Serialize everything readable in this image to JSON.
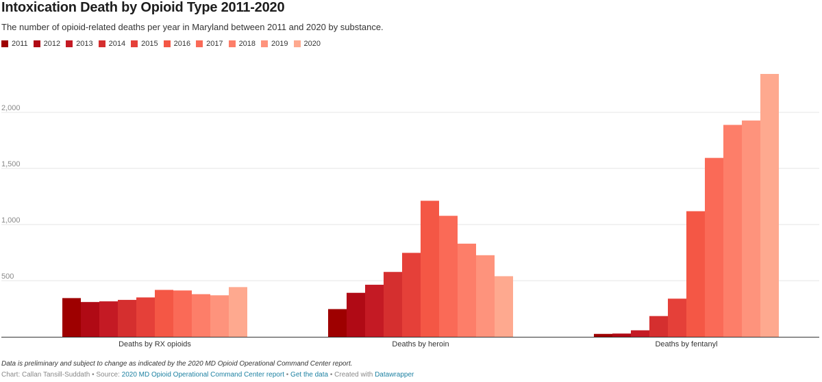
{
  "chart_data": {
    "type": "bar",
    "title": "Intoxication Death by Opioid Type 2011-2020",
    "subtitle": "The number of opioid-related deaths per year in Maryland between 2011 and 2020 by substance.",
    "categories": [
      "Deaths by RX opioids",
      "Deaths by heroin",
      "Deaths by fentanyl"
    ],
    "series": [
      {
        "name": "2011",
        "color": "#9e0000",
        "values": [
          345,
          247,
          26
        ]
      },
      {
        "name": "2012",
        "color": "#b00a15",
        "values": [
          310,
          392,
          29
        ]
      },
      {
        "name": "2013",
        "color": "#c41a24",
        "values": [
          316,
          464,
          58
        ]
      },
      {
        "name": "2014",
        "color": "#d52f2f",
        "values": [
          329,
          578,
          185
        ]
      },
      {
        "name": "2015",
        "color": "#e54039",
        "values": [
          351,
          748,
          340
        ]
      },
      {
        "name": "2016",
        "color": "#f45745",
        "values": [
          418,
          1212,
          1119
        ]
      },
      {
        "name": "2017",
        "color": "#fa6a57",
        "values": [
          413,
          1078,
          1594
        ]
      },
      {
        "name": "2018",
        "color": "#fd7e69",
        "values": [
          380,
          830,
          1888
        ]
      },
      {
        "name": "2019",
        "color": "#fe937c",
        "values": [
          370,
          727,
          1927
        ]
      },
      {
        "name": "2020",
        "color": "#fea98f",
        "values": [
          443,
          540,
          2342
        ]
      }
    ],
    "yticks": [
      500,
      1000,
      1500,
      2000
    ],
    "ytick_labels": [
      "500",
      "1,000",
      "1,500",
      "2,000"
    ],
    "ylim": [
      0,
      2342
    ],
    "xlabel": "",
    "ylabel": "",
    "grid": true,
    "legend": "top-left"
  },
  "notes": {
    "italic_note": "Data is preliminary and subject to change as indicated by the 2020 MD Opioid Operational Command Center report.",
    "credit_prefix": "Chart: Callan Tansill-Suddath • Source: ",
    "source_link": "2020 MD Opioid Operational Command Center report",
    "separator_1": " • ",
    "data_link": "Get the data",
    "created_with": " • Created with ",
    "tool_link": "Datawrapper"
  }
}
